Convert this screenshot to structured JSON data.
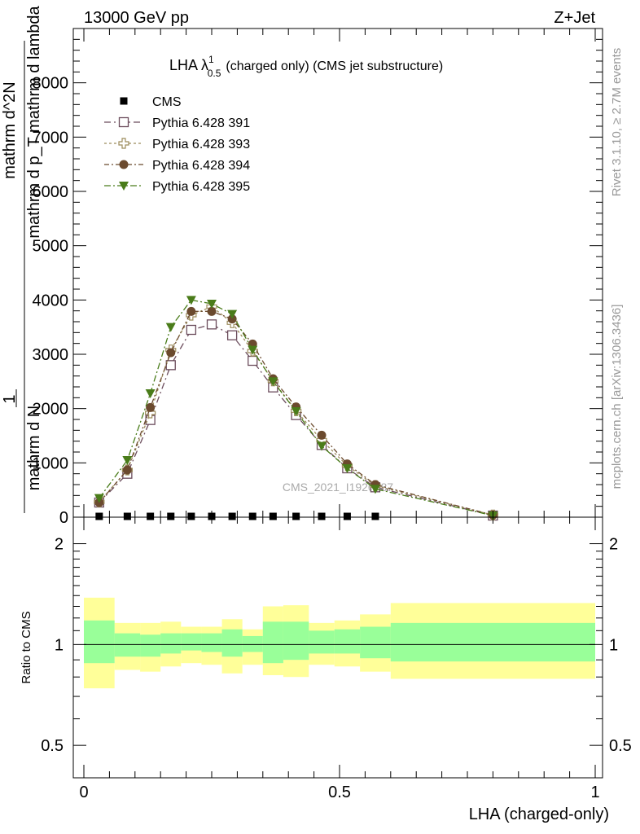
{
  "header": {
    "energy_label": "13000 GeV pp",
    "process_label": "Z+Jet"
  },
  "side_labels": {
    "rivet": "Rivet 3.1.10, ≥ 2.7M events",
    "mcplots": "mcplots.cern.ch [arXiv:1306.3436]"
  },
  "chart_data": [
    {
      "type": "scatter",
      "panel": "main",
      "title": "LHA λ",
      "title_sup": "1",
      "title_sub": "0.5",
      "title_rest": "(charged only) (CMS jet substructure)",
      "watermark": "CMS_2021_I1920187",
      "ylabel_num": "1",
      "ylabel_den": "mathrm d N",
      "ylabel_rest": "mathrm d^2N / mathrm d p_T mathrm d lambda",
      "ylabel_num_line": "mathrm d^2N",
      "ylabel_den_line": "mathrm d p_T mathrm d lambda",
      "xlim": [
        0,
        1
      ],
      "ylim": [
        0,
        9000
      ],
      "yticks": [
        0,
        1000,
        2000,
        3000,
        4000,
        5000,
        6000,
        7000,
        8000
      ],
      "ytick_labels": [
        "0",
        "1000",
        "2000",
        "3000",
        "4000",
        "5000",
        "6000",
        "7000",
        "8000"
      ],
      "legend_position": "top-left",
      "series": [
        {
          "name": "CMS",
          "color": "#000000",
          "marker": "filled-square",
          "x": [
            0.03,
            0.085,
            0.13,
            0.17,
            0.21,
            0.25,
            0.29,
            0.33,
            0.37,
            0.415,
            0.465,
            0.515,
            0.57
          ],
          "y": [
            8,
            8,
            8,
            8,
            8,
            8,
            8,
            8,
            8,
            8,
            8,
            8,
            8
          ]
        },
        {
          "name": "Pythia 6.428 391",
          "color": "#6b4c5c",
          "marker": "open-square",
          "x": [
            0.03,
            0.085,
            0.13,
            0.17,
            0.21,
            0.25,
            0.29,
            0.33,
            0.37,
            0.415,
            0.465,
            0.515,
            0.57,
            0.8
          ],
          "y": [
            270,
            800,
            1790,
            2800,
            3450,
            3550,
            3350,
            2880,
            2390,
            1880,
            1330,
            900,
            550,
            30
          ]
        },
        {
          "name": "Pythia 6.428 393",
          "color": "#9c8c5c",
          "marker": "open-cross",
          "x": [
            0.03,
            0.085,
            0.13,
            0.17,
            0.21,
            0.25,
            0.29,
            0.33,
            0.37,
            0.415,
            0.465,
            0.515,
            0.57,
            0.8
          ],
          "y": [
            280,
            870,
            1920,
            3080,
            3720,
            3880,
            3580,
            3060,
            2510,
            1960,
            1420,
            950,
            580,
            40
          ]
        },
        {
          "name": "Pythia 6.428 394",
          "color": "#6b4a2e",
          "marker": "filled-circle",
          "x": [
            0.03,
            0.085,
            0.13,
            0.17,
            0.21,
            0.25,
            0.29,
            0.33,
            0.37,
            0.415,
            0.465,
            0.515,
            0.57,
            0.8
          ],
          "y": [
            270,
            870,
            2020,
            3030,
            3790,
            3790,
            3650,
            3190,
            2550,
            2030,
            1510,
            980,
            600,
            40
          ]
        },
        {
          "name": "Pythia 6.428 395",
          "color": "#4a7c1a",
          "marker": "filled-triangle-down",
          "x": [
            0.03,
            0.085,
            0.13,
            0.17,
            0.21,
            0.25,
            0.29,
            0.33,
            0.37,
            0.415,
            0.465,
            0.515,
            0.57,
            0.8
          ],
          "y": [
            350,
            1050,
            2280,
            3500,
            4000,
            3930,
            3740,
            3080,
            2500,
            1950,
            1310,
            900,
            520,
            30
          ]
        }
      ]
    },
    {
      "type": "area",
      "panel": "ratio",
      "ylabel": "Ratio to CMS",
      "xlabel": "LHA (charged-only)",
      "xlim": [
        0,
        1
      ],
      "xticks": [
        0,
        0.5,
        1
      ],
      "xtick_labels": [
        "0",
        "0.5",
        "1"
      ],
      "ylim": [
        0.4,
        2.4
      ],
      "ylog": true,
      "yticks": [
        0.5,
        1,
        2
      ],
      "ytick_labels": [
        "0.5",
        "1",
        "2"
      ],
      "reference_line": 1,
      "bands": {
        "bin_edges": [
          0.0,
          0.06,
          0.11,
          0.15,
          0.19,
          0.23,
          0.27,
          0.31,
          0.35,
          0.39,
          0.44,
          0.49,
          0.54,
          0.6,
          1.0
        ],
        "inner_color": "#99ff99",
        "outer_color": "#ffff99",
        "inner_hi": [
          1.18,
          1.08,
          1.07,
          1.08,
          1.08,
          1.08,
          1.11,
          1.06,
          1.17,
          1.17,
          1.1,
          1.11,
          1.13,
          1.16
        ],
        "inner_lo": [
          0.88,
          0.92,
          0.92,
          0.94,
          0.96,
          0.95,
          0.92,
          0.95,
          0.88,
          0.9,
          0.94,
          0.94,
          0.91,
          0.89
        ],
        "outer_hi": [
          1.38,
          1.16,
          1.16,
          1.17,
          1.13,
          1.13,
          1.19,
          1.11,
          1.3,
          1.31,
          1.16,
          1.18,
          1.23,
          1.33
        ],
        "outer_lo": [
          0.74,
          0.84,
          0.83,
          0.86,
          0.88,
          0.87,
          0.82,
          0.87,
          0.81,
          0.8,
          0.87,
          0.86,
          0.83,
          0.79
        ]
      }
    }
  ]
}
